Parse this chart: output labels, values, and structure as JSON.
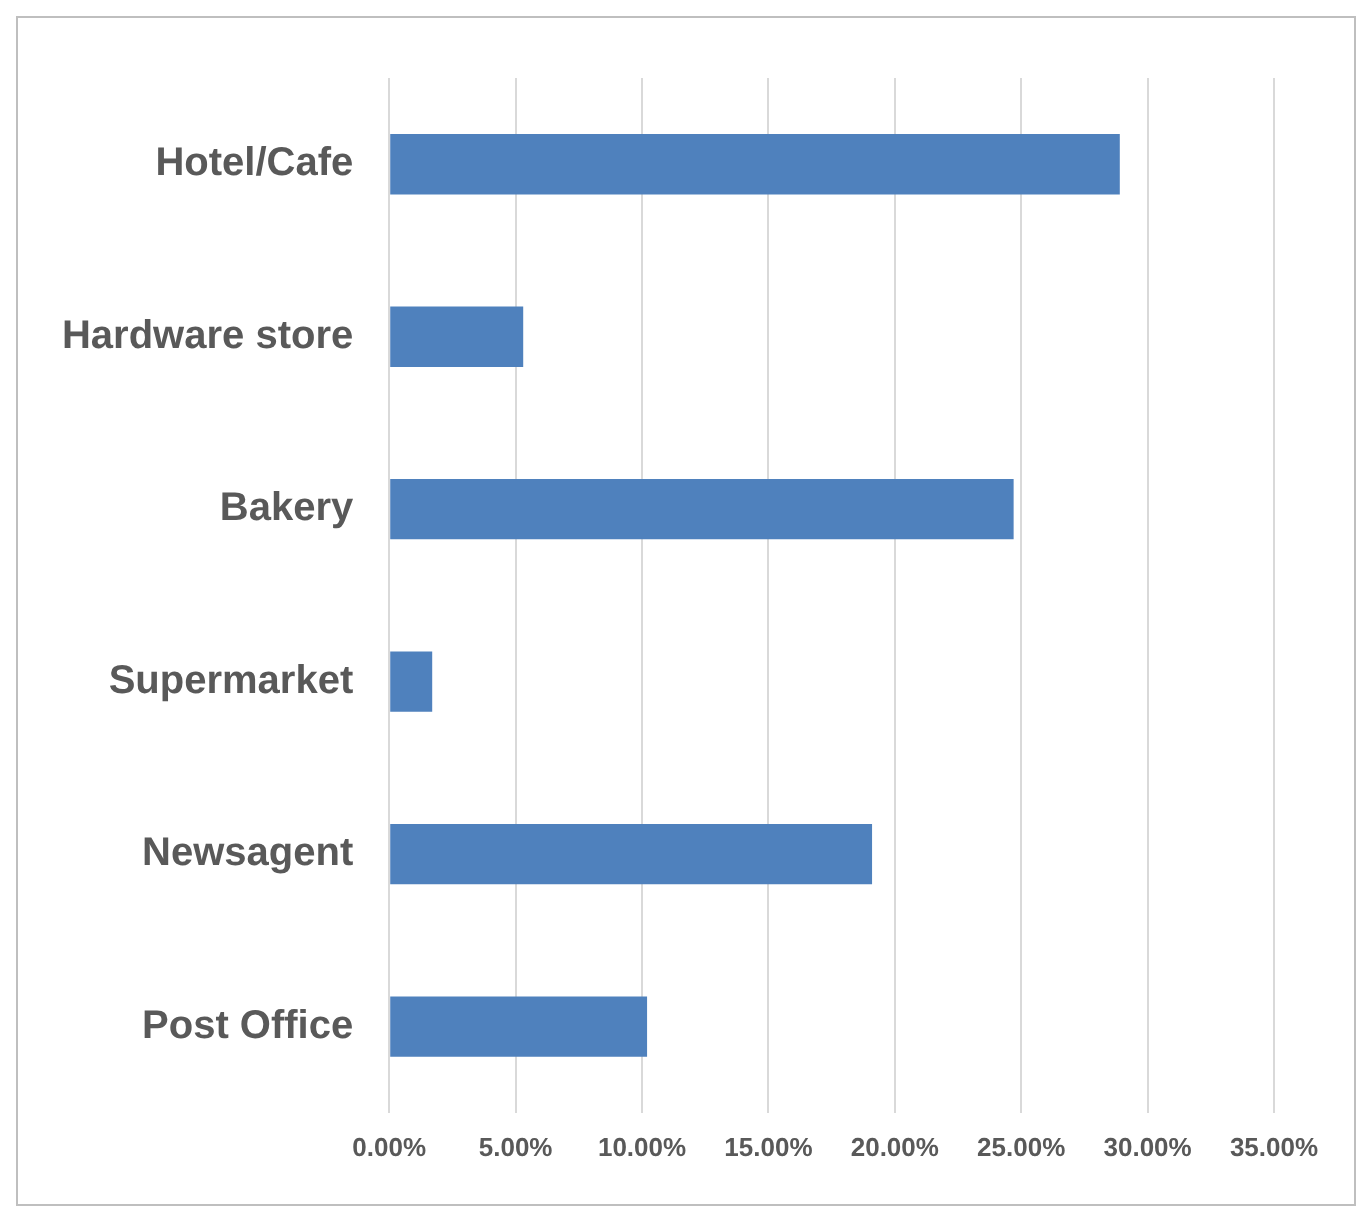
{
  "chart_data": {
    "type": "bar",
    "orientation": "horizontal",
    "categories": [
      "Hotel/Cafe",
      "Hardware store",
      "Bakery",
      "Supermarket",
      "Newsagent",
      "Post Office"
    ],
    "values": [
      28.9,
      5.3,
      24.7,
      1.7,
      19.1,
      10.2
    ],
    "color": "#4f81bd",
    "xlim": [
      0,
      35
    ],
    "xticks": [
      {
        "value": 0,
        "label": "0.00%"
      },
      {
        "value": 5,
        "label": "5.00%"
      },
      {
        "value": 10,
        "label": "10.00%"
      },
      {
        "value": 15,
        "label": "15.00%"
      },
      {
        "value": 20,
        "label": "20.00%"
      },
      {
        "value": 25,
        "label": "25.00%"
      },
      {
        "value": 30,
        "label": "30.00%"
      },
      {
        "value": 35,
        "label": "35.00%"
      }
    ],
    "grid": "x",
    "legend": false
  }
}
